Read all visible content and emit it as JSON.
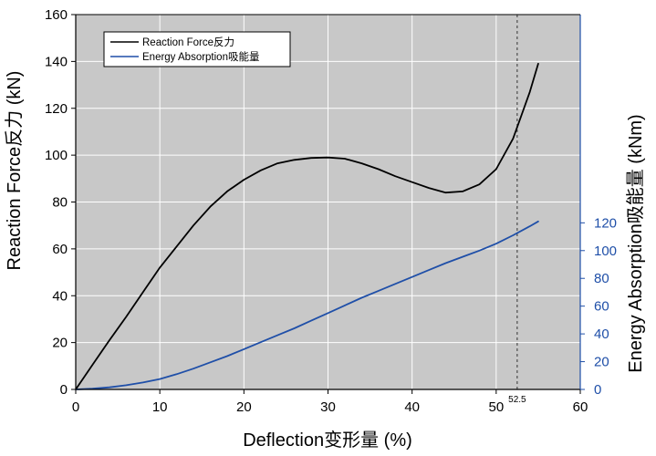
{
  "chart_data": {
    "type": "line",
    "title": "",
    "xlabel": "Deflection变形量 (%)",
    "ylabel": "Reaction Force反力 (kN)",
    "y2label": "Energy Absorption吸能量 (kNm)",
    "xlim": [
      0,
      60
    ],
    "ylim": [
      0,
      160
    ],
    "y2lim": [
      0,
      270
    ],
    "x_ticks": [
      "0",
      "10",
      "20",
      "30",
      "40",
      "50",
      "60"
    ],
    "y_ticks": [
      "0",
      "20",
      "40",
      "60",
      "80",
      "100",
      "120",
      "140",
      "160"
    ],
    "y2_ticks": [
      "0",
      "20",
      "40",
      "60",
      "80",
      "100",
      "120"
    ],
    "grid": true,
    "legend_position": "top-left",
    "series": [
      {
        "name": "Reaction Force反力",
        "axis": "left",
        "color": "#000000",
        "x": [
          0,
          2,
          4,
          6,
          8,
          10,
          12,
          14,
          16,
          18,
          20,
          22,
          24,
          26,
          28,
          30,
          32,
          34,
          36,
          38,
          40,
          42,
          44,
          46,
          48,
          50,
          52,
          53,
          54,
          55
        ],
        "y": [
          0,
          10.5,
          21,
          31,
          41.5,
          52,
          61,
          70,
          78,
          84.5,
          89.5,
          93.5,
          96.5,
          98,
          98.8,
          99,
          98.5,
          96.5,
          94,
          91,
          88.5,
          86,
          84,
          84.5,
          87.5,
          94,
          107,
          117,
          127,
          139
        ]
      },
      {
        "name": "Energy Absorption吸能量",
        "axis": "right",
        "color": "#1f4fa8",
        "x": [
          0,
          2,
          4,
          6,
          8,
          10,
          12,
          14,
          16,
          18,
          20,
          22,
          24,
          26,
          28,
          30,
          32,
          34,
          36,
          38,
          40,
          42,
          44,
          46,
          48,
          50,
          52,
          54,
          55
        ],
        "y": [
          0,
          0.5,
          1.5,
          3,
          5,
          7.5,
          11,
          15,
          19.5,
          24,
          29,
          34,
          39,
          44,
          49.5,
          55,
          60.5,
          66,
          71,
          76,
          81,
          86,
          91,
          95.5,
          100,
          105,
          111,
          117.5,
          121
        ]
      }
    ],
    "annotations": [
      {
        "type": "vline",
        "x": 52.5,
        "label": "52.5",
        "style": "dashed"
      }
    ]
  }
}
